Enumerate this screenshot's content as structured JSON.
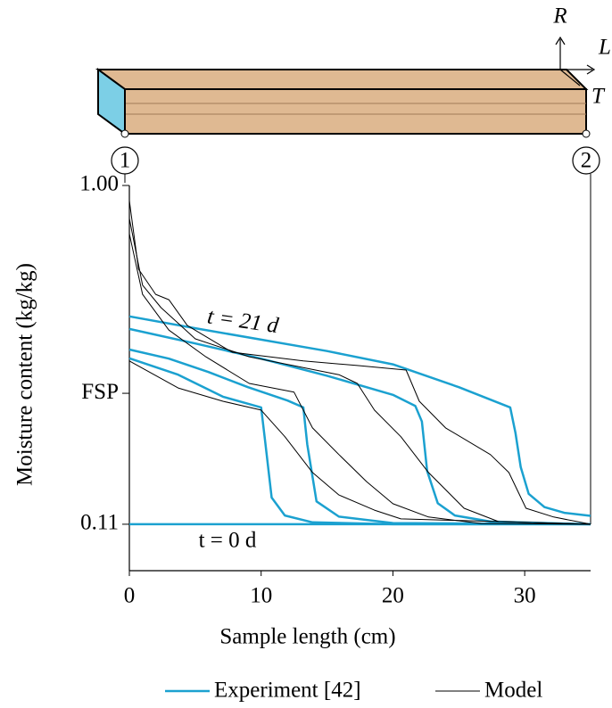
{
  "diagram": {
    "axes": [
      "R",
      "L",
      "T"
    ],
    "nodes": [
      "1",
      "2"
    ]
  },
  "chart_data": {
    "type": "line",
    "xlabel": "Sample length (cm)",
    "ylabel": "Moisture content (kg/kg)",
    "xlim": [
      0,
      35
    ],
    "xticks": [
      0,
      10,
      20,
      30
    ],
    "ylim": [
      -0.012,
      1.0
    ],
    "yticks": [
      {
        "value": 0.11,
        "label": "0.11"
      },
      {
        "value": 0.454,
        "label": "FSP"
      },
      {
        "value": 1.0,
        "label": "1.00"
      }
    ],
    "grid": false,
    "annotations": [
      "t = 21 d",
      "t = 0 d"
    ],
    "series": [
      {
        "name": "Experiment [42]",
        "color": "#1ba1d0",
        "x": [
          0,
          5,
          10,
          15,
          20,
          25,
          28.9,
          29.3,
          29.7,
          30.3,
          31.5,
          33,
          35
        ],
        "values": [
          0.656,
          0.625,
          0.595,
          0.565,
          0.53,
          0.47,
          0.417,
          0.35,
          0.26,
          0.19,
          0.155,
          0.14,
          0.132
        ]
      },
      {
        "color": "#1ba1d0",
        "x": [
          0,
          5,
          10,
          15,
          20,
          21.7,
          22.2,
          22.6,
          23.4,
          24.7,
          27.4,
          35
        ],
        "values": [
          0.623,
          0.585,
          0.545,
          0.5,
          0.45,
          0.421,
          0.38,
          0.25,
          0.165,
          0.133,
          0.117,
          0.11
        ]
      },
      {
        "color": "#1ba1d0",
        "x": [
          0,
          3,
          6,
          9,
          12,
          13.2,
          13.5,
          14.2,
          15.9,
          20,
          35
        ],
        "values": [
          0.569,
          0.545,
          0.51,
          0.47,
          0.435,
          0.417,
          0.32,
          0.17,
          0.13,
          0.113,
          0.11
        ]
      },
      {
        "color": "#1ba1d0",
        "x": [
          0,
          3.7,
          7.1,
          10,
          10.3,
          10.8,
          11.8,
          13.9,
          20,
          35
        ],
        "values": [
          0.546,
          0.503,
          0.445,
          0.417,
          0.33,
          0.18,
          0.133,
          0.115,
          0.11,
          0.11
        ]
      },
      {
        "color": "#1ba1d0",
        "x": [
          0,
          35
        ],
        "values": [
          0.11,
          0.11
        ]
      },
      {
        "name": "Model",
        "color": "#000000",
        "x": [
          0,
          0.7,
          2,
          3,
          4.4,
          7.8,
          13.2,
          17.3,
          21,
          22,
          24,
          27.4,
          28.8,
          30.1,
          32.2,
          35
        ],
        "values": [
          0.96,
          0.78,
          0.714,
          0.7,
          0.632,
          0.562,
          0.539,
          0.527,
          0.515,
          0.433,
          0.363,
          0.293,
          0.246,
          0.152,
          0.129,
          0.11
        ]
      },
      {
        "color": "#000000",
        "x": [
          0,
          1,
          2.4,
          5,
          9.1,
          15.9,
          17.3,
          18.6,
          20.6,
          22.7,
          25.4,
          28,
          35
        ],
        "values": [
          0.913,
          0.738,
          0.679,
          0.597,
          0.55,
          0.503,
          0.48,
          0.41,
          0.34,
          0.246,
          0.152,
          0.117,
          0.11
        ]
      },
      {
        "color": "#000000",
        "x": [
          0,
          1,
          3,
          5.8,
          9.1,
          12.5,
          13.9,
          15.9,
          18,
          20,
          22.7,
          26.7,
          35
        ],
        "values": [
          0.873,
          0.714,
          0.62,
          0.55,
          0.48,
          0.457,
          0.363,
          0.293,
          0.222,
          0.164,
          0.129,
          0.112,
          0.11
        ]
      },
      {
        "color": "#000000",
        "x": [
          0,
          3.7,
          7.1,
          10,
          11.8,
          13.9,
          15.9,
          18.6,
          20.6,
          35
        ],
        "values": [
          0.539,
          0.468,
          0.433,
          0.41,
          0.34,
          0.246,
          0.187,
          0.147,
          0.124,
          0.11
        ]
      }
    ]
  }
}
